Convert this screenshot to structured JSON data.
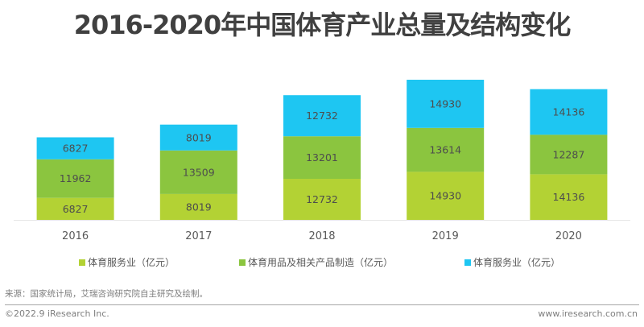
{
  "chart_data": {
    "type": "bar",
    "stacked": true,
    "title": "2016-2020年中国体育产业总量及结构变化",
    "categories": [
      "2016",
      "2017",
      "2018",
      "2019",
      "2020"
    ],
    "series": [
      {
        "name": "体育服务业（亿元）",
        "color": "#b3d234",
        "values": [
          6827,
          8019,
          12732,
          14930,
          14136
        ]
      },
      {
        "name": "体育用品及相关产品制造（亿元）",
        "color": "#8bc53f",
        "values": [
          11962,
          13509,
          13201,
          13614,
          12287
        ]
      },
      {
        "name": "体育服务业（亿元）",
        "color": "#1ec6f2",
        "values": [
          6827,
          8019,
          12732,
          14930,
          14136
        ]
      }
    ],
    "xlabel": "",
    "ylabel": "",
    "ylim": [
      0,
      44000
    ],
    "grid": false,
    "legend_position": "bottom"
  },
  "footer": {
    "source": "来源：国家统计局，艾瑞咨询研究院自主研究及绘制。",
    "copyright": "©2022.9 iResearch Inc.",
    "website": "www.iresearch.com.cn"
  }
}
